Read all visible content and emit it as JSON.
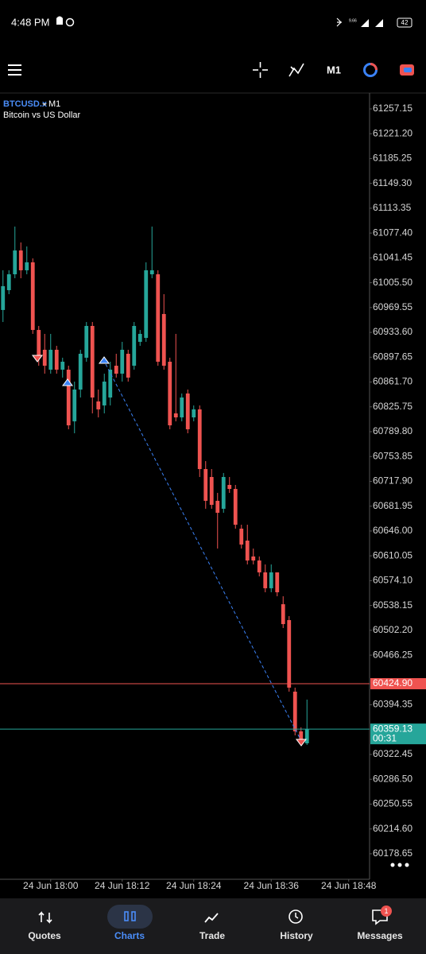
{
  "status_bar": {
    "time": "4:48 PM",
    "net_speed": "9.66",
    "battery": "42"
  },
  "toolbar": {
    "timeframe": "M1"
  },
  "chart_data": {
    "type": "candlestick",
    "symbol": "BTCUSD.x",
    "timeframe": "M1",
    "description": "Bitcoin vs US Dollar",
    "up_color": "#26a69a",
    "down_color": "#ef5350",
    "categories": [
      null,
      null,
      null,
      null,
      null,
      null,
      null,
      null,
      "24 Jun 18:00",
      null,
      null,
      null,
      null,
      null,
      null,
      null,
      null,
      null,
      null,
      null,
      "24 Jun 18:12",
      null,
      null,
      null,
      null,
      null,
      null,
      null,
      null,
      null,
      null,
      null,
      "24 Jun 18:24",
      null,
      null,
      null,
      null,
      null,
      null,
      null,
      null,
      null,
      null,
      null,
      null,
      "24 Jun 18:36",
      null,
      null,
      null,
      null,
      null,
      null,
      null,
      null,
      null,
      null,
      null,
      null,
      "24 Jun 18:48",
      null,
      null,
      null
    ],
    "ohlc": [
      [
        60966.0,
        61023.5,
        60948.6,
        61000.5
      ],
      [
        60994.7,
        61023.5,
        60988.9,
        61017.7
      ],
      [
        61017.7,
        61086.8,
        61012.0,
        61052.2
      ],
      [
        61052.2,
        61063.8,
        61012.0,
        61023.5
      ],
      [
        61023.5,
        61058.0,
        61017.7,
        61035.0
      ],
      [
        61035.0,
        61040.7,
        60931.4,
        60937.1
      ],
      [
        60937.1,
        60942.9,
        60885.3,
        60896.9
      ],
      [
        60908.4,
        60931.4,
        60873.8,
        60885.3
      ],
      [
        60879.6,
        60931.4,
        60873.8,
        60908.4
      ],
      [
        60908.4,
        60914.1,
        60873.8,
        60879.6
      ],
      [
        60879.6,
        60896.9,
        60868.1,
        60891.1
      ],
      [
        60879.6,
        60885.3,
        60793.3,
        60799.0
      ],
      [
        60804.8,
        60862.3,
        60787.5,
        60850.8
      ],
      [
        60850.8,
        60908.4,
        60839.3,
        60902.6
      ],
      [
        60896.9,
        60948.6,
        60891.1,
        60942.9
      ],
      [
        60942.9,
        60948.6,
        60816.3,
        60839.3
      ],
      [
        60833.6,
        60850.8,
        60810.5,
        60822.1
      ],
      [
        60827.8,
        60873.8,
        60816.3,
        60862.3
      ],
      [
        60839.3,
        60891.1,
        60827.8,
        60879.6
      ],
      [
        60885.3,
        60902.6,
        60868.1,
        60873.8
      ],
      [
        60873.8,
        60919.9,
        60862.3,
        60908.4
      ],
      [
        60902.6,
        60908.4,
        60862.3,
        60868.1
      ],
      [
        60885.3,
        60948.6,
        60879.6,
        60942.9
      ],
      [
        60919.9,
        60937.1,
        60914.1,
        60931.4
      ],
      [
        60925.6,
        61035.0,
        60919.9,
        61023.5
      ],
      [
        61017.7,
        61086.8,
        61012.0,
        61023.5
      ],
      [
        61017.7,
        61023.5,
        60885.3,
        60891.1
      ],
      [
        60960.2,
        60988.9,
        60879.6,
        60885.3
      ],
      [
        60891.1,
        60896.9,
        60793.3,
        60799.0
      ],
      [
        60816.3,
        60931.4,
        60804.8,
        60810.5
      ],
      [
        60810.5,
        60845.1,
        60804.8,
        60839.3
      ],
      [
        60845.1,
        60850.8,
        60787.5,
        60793.3
      ],
      [
        60810.5,
        60827.8,
        60804.8,
        60822.1
      ],
      [
        60822.1,
        60827.8,
        60724.2,
        60735.7
      ],
      [
        60735.7,
        60747.2,
        60678.2,
        60689.7
      ],
      [
        60724.2,
        60735.7,
        60678.2,
        60683.9
      ],
      [
        60689.7,
        60701.2,
        60620.6,
        60672.4
      ],
      [
        60678.2,
        60730.0,
        60672.4,
        60724.2
      ],
      [
        60712.7,
        60724.2,
        60701.2,
        60706.9
      ],
      [
        60706.9,
        60712.7,
        60649.4,
        60655.1
      ],
      [
        60649.4,
        60655.1,
        60620.6,
        60626.4
      ],
      [
        60632.1,
        60655.1,
        60597.6,
        60603.3
      ],
      [
        60609.1,
        60620.6,
        60597.6,
        60603.3
      ],
      [
        60603.3,
        60609.1,
        60580.3,
        60586.1
      ],
      [
        60586.1,
        60597.6,
        60557.3,
        60563.1
      ],
      [
        60563.1,
        60597.6,
        60557.3,
        60586.1
      ],
      [
        60586.1,
        60586.1,
        60551.5,
        60557.3
      ],
      [
        60540.0,
        60551.5,
        60505.5,
        60511.2
      ],
      [
        60517.0,
        60522.8,
        60413.4,
        60419.2
      ],
      [
        60413.4,
        60419.2,
        60350.1,
        60355.9
      ],
      [
        60355.9,
        60361.7,
        60336.3,
        60338.6
      ],
      [
        60338.6,
        60401.9,
        60336.3,
        60359.13
      ],
      null,
      null,
      null,
      null,
      null,
      null,
      null,
      null,
      null,
      null
    ],
    "ylim": [
      60142.9,
      61276.7
    ],
    "yticks": [
      61257.15,
      {
        "value": 61221.2,
        "label": "61221.20"
      },
      61185.25,
      {
        "value": 61149.3,
        "label": "61149.30"
      },
      61113.35,
      {
        "value": 61077.4,
        "label": "61077.40"
      },
      61041.45,
      {
        "value": 61005.5,
        "label": "61005.50"
      },
      60969.55,
      {
        "value": 60933.6,
        "label": "60933.60"
      },
      60897.65,
      {
        "value": 60861.7,
        "label": "60861.70"
      },
      60825.75,
      {
        "value": 60789.8,
        "label": "60789.80"
      },
      60753.85,
      {
        "value": 60717.9,
        "label": "60717.90"
      },
      60681.95,
      {
        "value": 60646,
        "label": "60646.00"
      },
      60610.05,
      {
        "value": 60574.1,
        "label": "60574.10"
      },
      60538.15,
      {
        "value": 60502.2,
        "label": "60502.20"
      },
      60466.25,
      60394.35,
      60322.45,
      {
        "value": 60286.5,
        "label": "60286.50"
      },
      60250.55,
      {
        "value": 60214.6,
        "label": "60214.60"
      },
      60178.65
    ],
    "price_lines": [
      {
        "value": 60424.9,
        "label": "60424.90",
        "color": "#ef5350"
      },
      {
        "value": 60359.13,
        "color": "#26a69a",
        "countdown": "00:31"
      }
    ]
  },
  "nav": {
    "items": [
      "Quotes",
      "Charts",
      "Trade",
      "History",
      "Messages"
    ],
    "badge": "1"
  }
}
